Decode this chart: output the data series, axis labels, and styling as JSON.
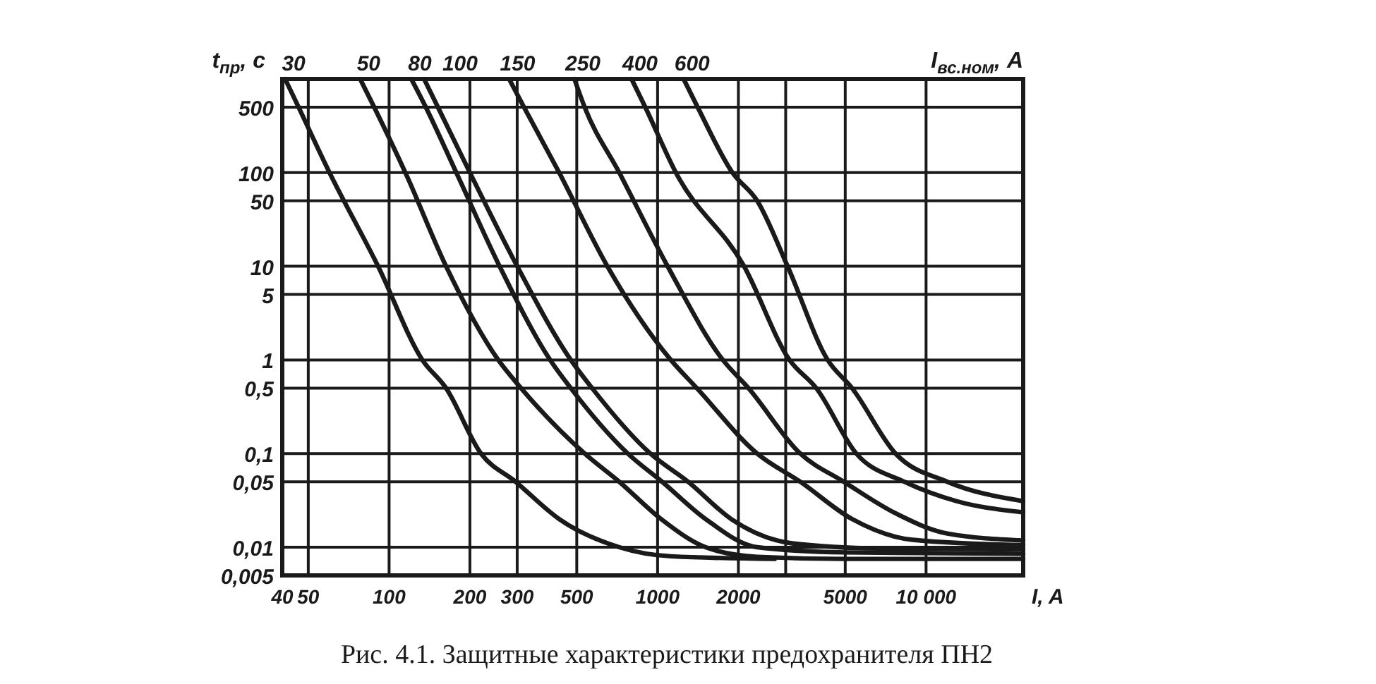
{
  "chart_data": {
    "type": "line",
    "title": "Рис. 4.1. Защитные характеристики предохранителя ПН2",
    "xlabel": "I, A",
    "ylabel": "t$_{пр}$, с",
    "annotations": [
      "I$_{вс.ном}$, A"
    ],
    "log": "xy",
    "grid": true,
    "legend": false,
    "marker": "none",
    "line_style": "solid",
    "xlim": [
      40,
      23000
    ],
    "ylim": [
      0.005,
      1000
    ],
    "xticks": [
      40,
      50,
      100,
      200,
      300,
      500,
      1000,
      2000,
      {
        "value": 3000,
        "label": null
      },
      5000,
      {
        "value": 10000,
        "label": "10 000"
      }
    ],
    "yticks": [
      {
        "value": 0.005,
        "label": "0,005"
      },
      {
        "value": 0.01,
        "label": "0,01"
      },
      {
        "value": 0.05,
        "label": "0,05"
      },
      {
        "value": 0.1,
        "label": "0,1"
      },
      {
        "value": 0.5,
        "label": "0,5"
      },
      1,
      5,
      10,
      50,
      100,
      500,
      {
        "value": 1000,
        "label": null
      }
    ],
    "series": [
      {
        "name": "30",
        "color": "#1a1a1a",
        "x": [
          41,
          46,
          60,
          91,
          133,
          163,
          220,
          296,
          430,
          720,
          1120,
          2730
        ],
        "values": [
          1000,
          500,
          100,
          10,
          1,
          0.5,
          0.1,
          0.05,
          0.02,
          0.01,
          0.008,
          0.0075
        ]
      },
      {
        "name": "50",
        "color": "#1a1a1a",
        "x": [
          78,
          88,
          115,
          163,
          255,
          310,
          535,
          720,
          1030,
          1510,
          2350,
          4940,
          23000
        ],
        "values": [
          1000,
          500,
          100,
          10,
          1,
          0.5,
          0.1,
          0.05,
          0.02,
          0.01,
          0.0079,
          0.0075,
          0.0075
        ]
      },
      {
        "name": "80",
        "color": "#1a1a1a",
        "x": [
          121,
          137,
          178,
          258,
          398,
          475,
          775,
          1040,
          1510,
          2350,
          4940,
          23000
        ],
        "values": [
          1000,
          500,
          100,
          10,
          1,
          0.5,
          0.1,
          0.05,
          0.02,
          0.01,
          0.0088,
          0.0085
        ]
      },
      {
        "name": "100",
        "color": "#1a1a1a",
        "x": [
          135,
          152,
          200,
          300,
          475,
          570,
          940,
          1300,
          1880,
          3170,
          6650,
          23000
        ],
        "values": [
          1000,
          500,
          100,
          10,
          1,
          0.5,
          0.1,
          0.05,
          0.02,
          0.011,
          0.0097,
          0.0095
        ]
      },
      {
        "name": "150",
        "color": "#1a1a1a",
        "x": [
          280,
          318,
          430,
          650,
          1120,
          1400,
          2350,
          3400,
          5300,
          8900,
          23000
        ],
        "values": [
          1000,
          500,
          100,
          10,
          1,
          0.5,
          0.1,
          0.05,
          0.02,
          0.012,
          0.0105
        ]
      },
      {
        "name": "250",
        "color": "#1a1a1a",
        "x": [
          490,
          535,
          720,
          1090,
          1750,
          2180,
          3400,
          4940,
          7700,
          12000,
          23000
        ],
        "values": [
          1000,
          500,
          100,
          10,
          1,
          0.5,
          0.1,
          0.05,
          0.023,
          0.014,
          0.0118
        ]
      },
      {
        "name": "400",
        "color": "#1a1a1a",
        "x": [
          800,
          900,
          1170,
          2100,
          3100,
          3900,
          5500,
          8300,
          13000,
          23000
        ],
        "values": [
          1000,
          500,
          100,
          10,
          1,
          0.5,
          0.1,
          0.05,
          0.031,
          0.0236
        ]
      },
      {
        "name": "600",
        "color": "#1a1a1a",
        "x": [
          1250,
          1410,
          1900,
          2350,
          3050,
          4300,
          5300,
          7700,
          12000,
          23000
        ],
        "values": [
          1000,
          500,
          100,
          50,
          10,
          1,
          0.5,
          0.1,
          0.05,
          0.031
        ]
      }
    ]
  }
}
